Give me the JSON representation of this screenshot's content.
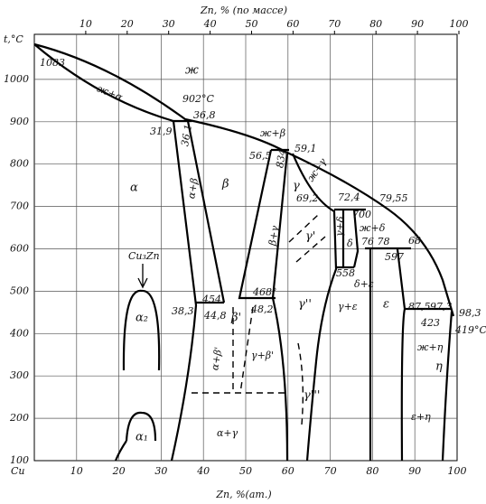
{
  "axes": {
    "top_label": "Zn, % (по массе)",
    "top_ticks": [
      10,
      20,
      30,
      40,
      50,
      60,
      70,
      80,
      90,
      100
    ],
    "y_label": "t,°C",
    "y_ticks": [
      100,
      200,
      300,
      400,
      500,
      600,
      700,
      800,
      900,
      1000
    ],
    "x_origin_label": "Cu",
    "x_ticks": [
      10,
      20,
      30,
      40,
      50,
      60,
      70,
      80,
      90,
      100
    ],
    "x_label": "Zn, %(ат.)"
  },
  "labels": [
    "1083",
    "ж",
    "ж+α",
    "902°C",
    "36,8",
    "31,9",
    "36,1",
    "ж+β",
    "59,1",
    "56,5",
    "834",
    "ж+γ",
    "α",
    "α+β",
    "β",
    "γ",
    "69,2",
    "72,4",
    "79,55",
    "700",
    "ж+δ",
    "γ+δ",
    "β+γ",
    "γ'",
    "δ",
    "76 78",
    "68",
    "597",
    "558",
    "δ+ε",
    "Cu₃Zn",
    "α₂",
    "454",
    "468°",
    "γ''",
    "γ+ε",
    "ε",
    "38,3",
    "44,8",
    "β'",
    "48,2",
    "87,5",
    "97,3",
    "98,3",
    "423",
    "419°C",
    "ж+η",
    "η",
    "α+β'",
    "γ+β'",
    "γ'''",
    "ε+η",
    "α₁",
    "α+γ"
  ]
}
